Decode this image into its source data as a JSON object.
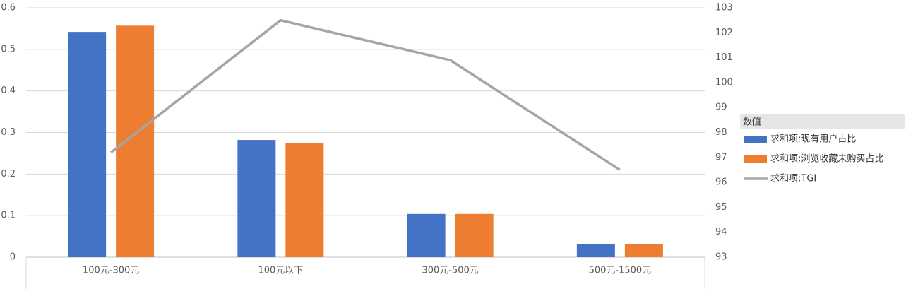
{
  "chart_data": {
    "type": "bar-line",
    "categories": [
      "100元-300元",
      "100元以下",
      "300元-500元",
      "500元-1500元"
    ],
    "series": [
      {
        "name": "求和项:现有用户占比",
        "type": "bar",
        "color": "#4472c4",
        "values": [
          0.542,
          0.282,
          0.104,
          0.031
        ]
      },
      {
        "name": "求和项:浏览收藏未购买占比",
        "type": "bar",
        "color": "#ed7d31",
        "values": [
          0.557,
          0.275,
          0.104,
          0.032
        ]
      },
      {
        "name": "求和项:TGI",
        "type": "line",
        "axis": "y2",
        "color": "#a5a5a5",
        "values": [
          97.2,
          102.5,
          100.9,
          96.5
        ]
      }
    ],
    "ylim": [
      0,
      0.6
    ],
    "yticks": [
      0,
      0.1,
      0.2,
      0.3,
      0.4,
      0.5,
      0.6
    ],
    "y2lim": [
      93,
      103
    ],
    "y2ticks": [
      93,
      94,
      95,
      96,
      97,
      98,
      99,
      100,
      101,
      102,
      103
    ],
    "grid": true,
    "legend_title": "数值",
    "legend": "right"
  }
}
